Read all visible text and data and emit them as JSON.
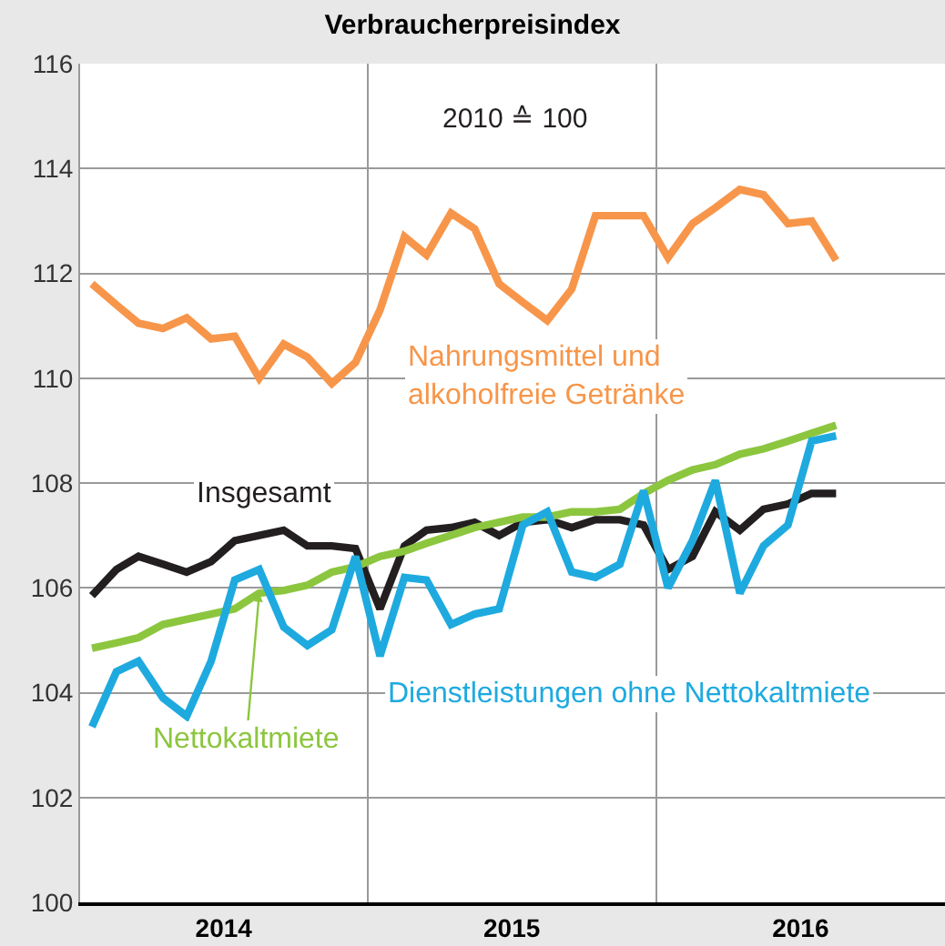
{
  "chart_data": {
    "type": "line",
    "title": "Verbraucherpreisindex",
    "annotations": [
      "2010 ≙ 100"
    ],
    "x": [
      "2014-01",
      "2014-02",
      "2014-03",
      "2014-04",
      "2014-05",
      "2014-06",
      "2014-07",
      "2014-08",
      "2014-09",
      "2014-10",
      "2014-11",
      "2014-12",
      "2015-01",
      "2015-02",
      "2015-03",
      "2015-04",
      "2015-05",
      "2015-06",
      "2015-07",
      "2015-08",
      "2015-09",
      "2015-10",
      "2015-11",
      "2015-12",
      "2016-01",
      "2016-02",
      "2016-03",
      "2016-04",
      "2016-05",
      "2016-06",
      "2016-07",
      "2016-08"
    ],
    "series": [
      {
        "name": "Nahrungsmittel und alkoholfreie Getränke",
        "color": "#f7964a",
        "values": [
          111.8,
          111.4,
          111.05,
          110.95,
          111.15,
          110.75,
          110.8,
          110.0,
          110.65,
          110.4,
          109.9,
          110.3,
          111.3,
          112.7,
          112.35,
          113.15,
          112.85,
          111.8,
          111.45,
          111.1,
          111.7,
          113.1,
          113.1,
          113.1,
          112.3,
          112.95,
          113.25,
          113.6,
          113.5,
          112.95,
          113.0,
          112.25
        ]
      },
      {
        "name": "Insgesamt",
        "color": "#231f20",
        "values": [
          105.85,
          106.35,
          106.6,
          106.45,
          106.3,
          106.5,
          106.9,
          107.0,
          107.1,
          106.8,
          106.8,
          106.75,
          105.6,
          106.8,
          107.1,
          107.15,
          107.25,
          107.0,
          107.25,
          107.3,
          107.15,
          107.3,
          107.3,
          107.2,
          106.35,
          106.6,
          107.45,
          107.1,
          107.5,
          107.6,
          107.8,
          107.8
        ]
      },
      {
        "name": "Nettokaltmiete",
        "color": "#8cc63f",
        "values": [
          104.85,
          104.95,
          105.05,
          105.3,
          105.4,
          105.5,
          105.6,
          105.9,
          105.95,
          106.05,
          106.3,
          106.4,
          106.6,
          106.7,
          106.85,
          107.0,
          107.15,
          107.25,
          107.35,
          107.35,
          107.45,
          107.45,
          107.5,
          107.8,
          108.05,
          108.25,
          108.35,
          108.55,
          108.65,
          108.8,
          108.95,
          109.1
        ]
      },
      {
        "name": "Dienstleistungen ohne Nettokaltmiete",
        "color": "#1eaadf",
        "values": [
          103.35,
          104.4,
          104.6,
          103.9,
          103.55,
          104.6,
          106.15,
          106.35,
          105.25,
          104.9,
          105.2,
          106.6,
          104.7,
          106.2,
          106.15,
          105.3,
          105.5,
          105.6,
          107.2,
          107.45,
          106.3,
          106.2,
          106.45,
          107.85,
          106.0,
          106.9,
          108.05,
          105.9,
          106.8,
          107.2,
          108.8,
          108.9
        ]
      }
    ],
    "xlim": [
      "2013-12-17",
      "2016-12-17"
    ],
    "xticks": [
      {
        "value": "2014-06-17",
        "label": "2014"
      },
      {
        "value": "2015-06-17",
        "label": "2015"
      },
      {
        "value": "2016-06-17",
        "label": "2016"
      }
    ],
    "ylim": [
      100,
      116
    ],
    "yticks": [
      100,
      102,
      104,
      106,
      108,
      110,
      112,
      114,
      116
    ],
    "grid": true,
    "legend": false,
    "marker": "none",
    "line_style": "solid"
  }
}
